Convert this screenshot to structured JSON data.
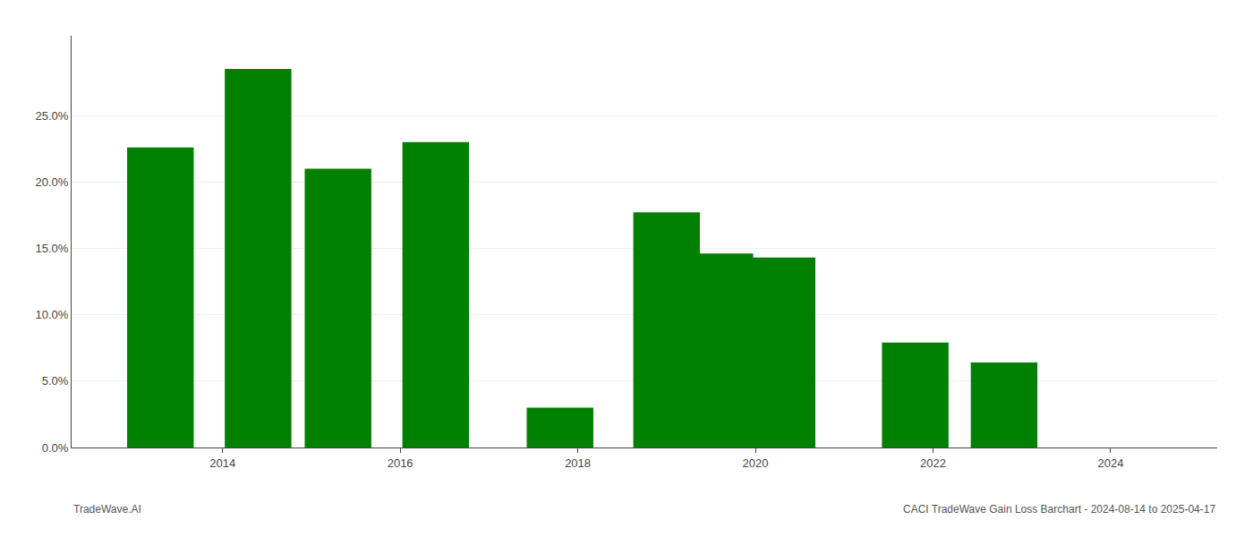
{
  "chart_data": {
    "type": "bar",
    "x": [
      2013.3,
      2014.4,
      2015.3,
      2016.4,
      2017.8,
      2019.0,
      2019.6,
      2020.3,
      2021.8,
      2022.8
    ],
    "values": [
      0.226,
      0.285,
      0.21,
      0.23,
      0.03,
      0.177,
      0.146,
      0.143,
      0.079,
      0.064
    ],
    "color": "#008000",
    "xlim": [
      2012.3,
      2025.2
    ],
    "xticks": [
      2014,
      2016,
      2018,
      2020,
      2022,
      2024
    ],
    "ylim": [
      0,
      0.31
    ],
    "yticks": [
      {
        "value": 0.0,
        "label": "0.0%"
      },
      {
        "value": 0.05,
        "label": "5.0%"
      },
      {
        "value": 0.1,
        "label": "10.0%"
      },
      {
        "value": 0.15,
        "label": "15.0%"
      },
      {
        "value": 0.2,
        "label": "20.0%"
      },
      {
        "value": 0.25,
        "label": "25.0%"
      }
    ],
    "grid": true,
    "annotations": [
      "TradeWave.AI",
      "CACI TradeWave Gain Loss Barchart - 2024-08-14 to 2025-04-17"
    ]
  }
}
